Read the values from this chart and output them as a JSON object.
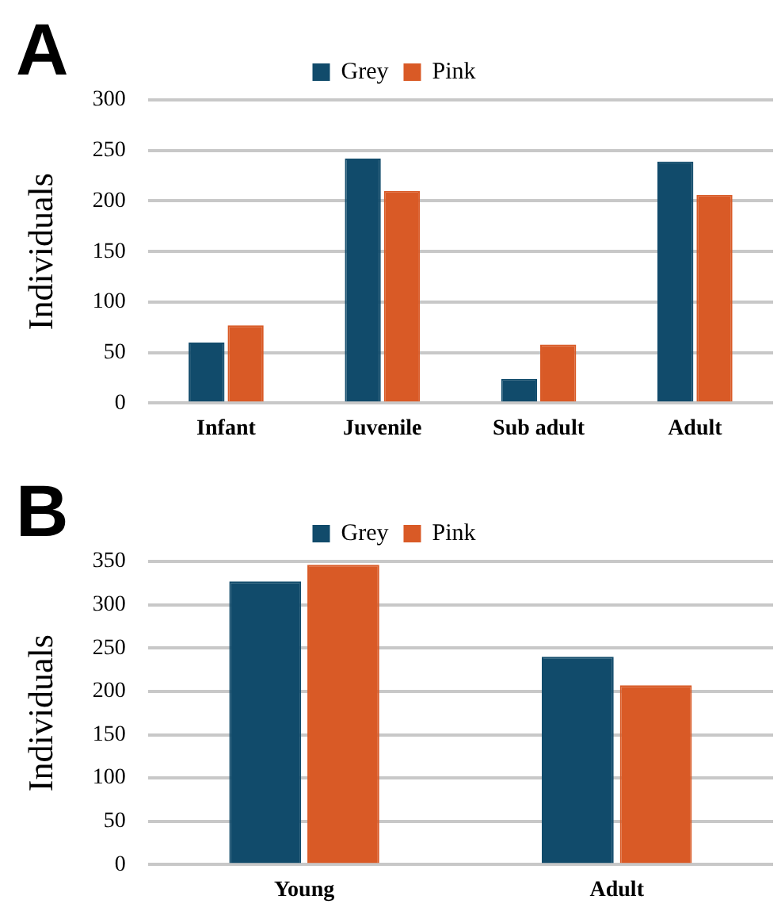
{
  "chart_data": [
    {
      "type": "bar",
      "title": "A",
      "ylabel": "Individuals",
      "categories": [
        "Infant",
        "Juvenile",
        "Sub adult",
        "Adult"
      ],
      "series": [
        {
          "name": "Grey",
          "color": "#114b6b",
          "values": [
            60,
            242,
            24,
            239
          ]
        },
        {
          "name": "Pink",
          "color": "#d95a26",
          "values": [
            77,
            210,
            58,
            206
          ]
        }
      ],
      "ylim": [
        0,
        300
      ],
      "yticks": [
        0,
        50,
        100,
        150,
        200,
        250,
        300
      ],
      "grid": "y",
      "legend": "top"
    },
    {
      "type": "bar",
      "title": "B",
      "ylabel": "Individuals",
      "categories": [
        "Young",
        "Adult"
      ],
      "series": [
        {
          "name": "Grey",
          "color": "#114b6b",
          "values": [
            327,
            240
          ]
        },
        {
          "name": "Pink",
          "color": "#d95a26",
          "values": [
            346,
            207
          ]
        }
      ],
      "ylim": [
        0,
        350
      ],
      "yticks": [
        0,
        50,
        100,
        150,
        200,
        250,
        300,
        350
      ],
      "grid": "y",
      "legend": "top"
    }
  ]
}
